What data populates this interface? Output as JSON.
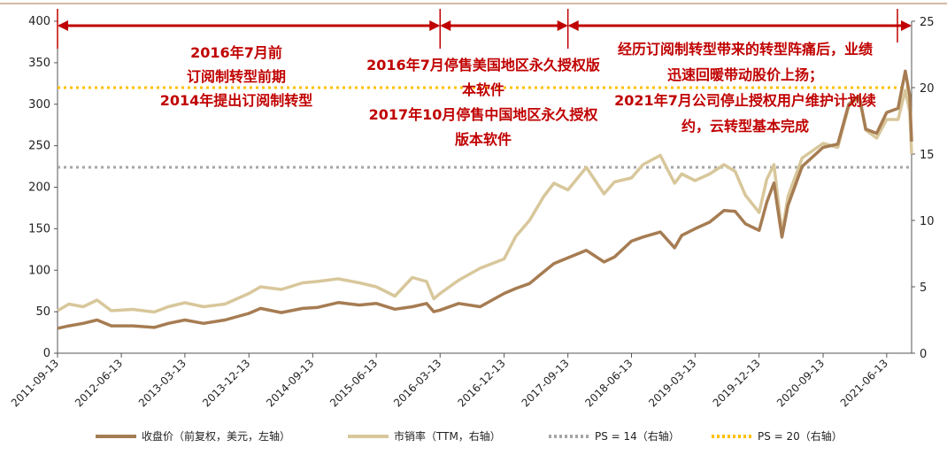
{
  "chart_data": {
    "type": "line",
    "x_ticks": [
      "2011-09-13",
      "2012-06-13",
      "2013-03-13",
      "2013-12-13",
      "2014-09-13",
      "2015-06-13",
      "2016-03-13",
      "2016-12-13",
      "2017-09-13",
      "2018-06-13",
      "2019-03-13",
      "2019-12-13",
      "2020-09-13",
      "2021-06-13"
    ],
    "y_left": {
      "ylim": [
        0,
        400
      ],
      "ticks": [
        0,
        50,
        100,
        150,
        200,
        250,
        300,
        350,
        400
      ]
    },
    "y_right": {
      "ylim": [
        0,
        25
      ],
      "ticks": [
        0,
        5,
        10,
        15,
        20,
        25
      ]
    },
    "series": [
      {
        "name": "收盘价（前复权，美元，左轴）",
        "axis": "left",
        "color": "#a67c52",
        "points": [
          [
            "2011-09-13",
            30
          ],
          [
            "2011-11-01",
            33
          ],
          [
            "2012-01-01",
            36
          ],
          [
            "2012-03-01",
            40
          ],
          [
            "2012-05-01",
            33
          ],
          [
            "2012-08-01",
            33
          ],
          [
            "2012-11-01",
            31
          ],
          [
            "2013-01-01",
            36
          ],
          [
            "2013-03-13",
            40
          ],
          [
            "2013-06-01",
            36
          ],
          [
            "2013-09-01",
            40
          ],
          [
            "2013-12-13",
            48
          ],
          [
            "2014-02-01",
            54
          ],
          [
            "2014-05-01",
            49
          ],
          [
            "2014-08-01",
            54
          ],
          [
            "2014-10-01",
            55
          ],
          [
            "2015-01-01",
            61
          ],
          [
            "2015-04-01",
            58
          ],
          [
            "2015-06-13",
            60
          ],
          [
            "2015-09-01",
            53
          ],
          [
            "2015-11-15",
            56
          ],
          [
            "2016-01-15",
            60
          ],
          [
            "2016-02-15",
            50
          ],
          [
            "2016-03-13",
            52
          ],
          [
            "2016-06-01",
            60
          ],
          [
            "2016-09-01",
            56
          ],
          [
            "2016-12-13",
            72
          ],
          [
            "2017-02-01",
            78
          ],
          [
            "2017-04-01",
            84
          ],
          [
            "2017-06-01",
            98
          ],
          [
            "2017-07-15",
            108
          ],
          [
            "2017-09-13",
            115
          ],
          [
            "2017-12-01",
            124
          ],
          [
            "2018-02-15",
            110
          ],
          [
            "2018-04-01",
            116
          ],
          [
            "2018-06-13",
            135
          ],
          [
            "2018-08-01",
            140
          ],
          [
            "2018-10-15",
            146
          ],
          [
            "2018-12-15",
            127
          ],
          [
            "2019-01-15",
            142
          ],
          [
            "2019-03-13",
            150
          ],
          [
            "2019-05-15",
            158
          ],
          [
            "2019-07-15",
            172
          ],
          [
            "2019-09-01",
            171
          ],
          [
            "2019-10-15",
            156
          ],
          [
            "2019-12-13",
            148
          ],
          [
            "2020-01-15",
            182
          ],
          [
            "2020-02-15",
            205
          ],
          [
            "2020-03-20",
            140
          ],
          [
            "2020-04-15",
            178
          ],
          [
            "2020-06-15",
            225
          ],
          [
            "2020-09-13",
            248
          ],
          [
            "2020-11-15",
            252
          ],
          [
            "2021-01-01",
            300
          ],
          [
            "2021-02-15",
            310
          ],
          [
            "2021-03-15",
            270
          ],
          [
            "2021-05-01",
            265
          ],
          [
            "2021-06-13",
            290
          ],
          [
            "2021-08-01",
            295
          ],
          [
            "2021-09-01",
            340
          ],
          [
            "2021-09-20",
            310
          ],
          [
            "2021-09-28",
            255
          ]
        ]
      },
      {
        "name": "市销率（TTM，右轴）",
        "axis": "right",
        "color": "#d8c79b",
        "points": [
          [
            "2011-09-13",
            3.2
          ],
          [
            "2011-11-01",
            3.7
          ],
          [
            "2012-01-01",
            3.5
          ],
          [
            "2012-03-01",
            4.0
          ],
          [
            "2012-05-01",
            3.2
          ],
          [
            "2012-08-01",
            3.3
          ],
          [
            "2012-11-01",
            3.1
          ],
          [
            "2013-01-01",
            3.5
          ],
          [
            "2013-03-13",
            3.8
          ],
          [
            "2013-06-01",
            3.5
          ],
          [
            "2013-09-01",
            3.7
          ],
          [
            "2013-12-13",
            4.5
          ],
          [
            "2014-02-01",
            5.0
          ],
          [
            "2014-05-01",
            4.8
          ],
          [
            "2014-08-01",
            5.3
          ],
          [
            "2014-10-01",
            5.4
          ],
          [
            "2015-01-01",
            5.6
          ],
          [
            "2015-04-01",
            5.3
          ],
          [
            "2015-06-13",
            5.0
          ],
          [
            "2015-09-01",
            4.3
          ],
          [
            "2015-11-15",
            5.7
          ],
          [
            "2016-01-15",
            5.4
          ],
          [
            "2016-02-15",
            4.1
          ],
          [
            "2016-03-13",
            4.5
          ],
          [
            "2016-06-01",
            5.5
          ],
          [
            "2016-09-01",
            6.4
          ],
          [
            "2016-12-13",
            7.1
          ],
          [
            "2017-02-01",
            8.8
          ],
          [
            "2017-04-01",
            10.0
          ],
          [
            "2017-06-01",
            11.8
          ],
          [
            "2017-07-15",
            12.8
          ],
          [
            "2017-09-13",
            12.3
          ],
          [
            "2017-12-01",
            14.0
          ],
          [
            "2018-02-15",
            12.0
          ],
          [
            "2018-04-01",
            12.9
          ],
          [
            "2018-06-13",
            13.2
          ],
          [
            "2018-08-01",
            14.2
          ],
          [
            "2018-10-15",
            14.9
          ],
          [
            "2018-12-15",
            12.8
          ],
          [
            "2019-01-15",
            13.5
          ],
          [
            "2019-03-13",
            13.0
          ],
          [
            "2019-05-15",
            13.5
          ],
          [
            "2019-07-15",
            14.2
          ],
          [
            "2019-09-01",
            13.7
          ],
          [
            "2019-10-15",
            11.9
          ],
          [
            "2019-12-13",
            10.6
          ],
          [
            "2020-01-15",
            13.1
          ],
          [
            "2020-02-15",
            14.2
          ],
          [
            "2020-03-20",
            9.0
          ],
          [
            "2020-04-15",
            11.8
          ],
          [
            "2020-06-15",
            14.7
          ],
          [
            "2020-09-13",
            15.8
          ],
          [
            "2020-11-15",
            15.5
          ],
          [
            "2021-01-01",
            18.6
          ],
          [
            "2021-02-15",
            19.3
          ],
          [
            "2021-03-15",
            16.8
          ],
          [
            "2021-05-01",
            16.2
          ],
          [
            "2021-06-13",
            17.6
          ],
          [
            "2021-08-01",
            17.6
          ],
          [
            "2021-09-01",
            19.8
          ],
          [
            "2021-09-20",
            18.2
          ],
          [
            "2021-09-28",
            15.0
          ]
        ]
      },
      {
        "name": "PS = 14（右轴）",
        "axis": "right",
        "color": "#a6a6a6",
        "style": "dotted",
        "value": 14
      },
      {
        "name": "PS = 20（右轴）",
        "axis": "right",
        "color": "#ffc000",
        "style": "dotted",
        "value": 20
      }
    ],
    "spans": [
      {
        "from": "2011-09-13",
        "to": "2016-03-13"
      },
      {
        "from": "2016-03-13",
        "to": "2017-09-13"
      },
      {
        "from": "2017-09-13",
        "to": "2021-09-28"
      }
    ],
    "annotations": [
      {
        "lines": [
          "2016年7月前",
          "订阅制转型前期",
          "2014年提出订阅制转型"
        ]
      },
      {
        "lines": [
          "2016年7月停售美国地区永久授权版",
          "本软件",
          "2017年10月停售中国地区永久授权",
          "版本软件"
        ]
      },
      {
        "lines": [
          "经历订阅制转型带来的转型阵痛后，业绩",
          "迅速回暖带动股价上扬；",
          "2021年7月公司停止授权用户维护计划续",
          "约，云转型基本完成"
        ]
      }
    ],
    "legend": "bottom",
    "grid": false
  }
}
